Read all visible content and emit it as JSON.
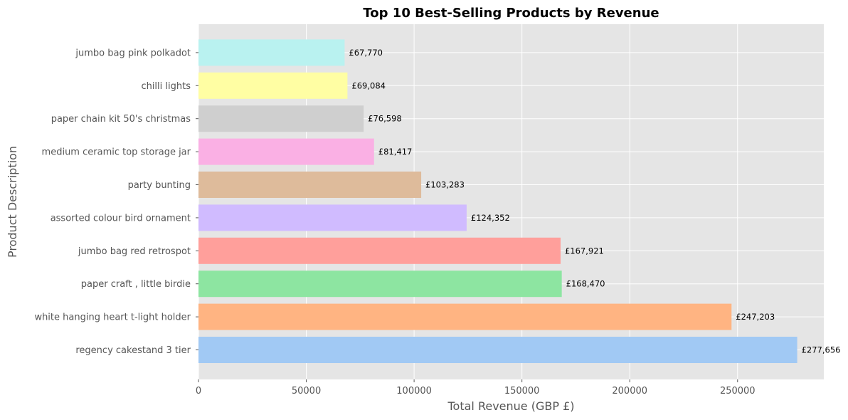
{
  "chart_data": {
    "type": "bar",
    "orientation": "horizontal",
    "title": "Top 10 Best-Selling Products by Revenue",
    "xlabel": "Total Revenue (GBP £)",
    "ylabel": "Product Description",
    "xlim": [
      0,
      290000
    ],
    "xticks": [
      0,
      50000,
      100000,
      150000,
      200000,
      250000
    ],
    "xtick_labels": [
      "0",
      "50000",
      "100000",
      "150000",
      "200000",
      "250000"
    ],
    "grid": true,
    "categories": [
      "regency cakestand 3 tier",
      "white hanging heart t-light holder",
      "paper craft , little birdie",
      "jumbo bag red retrospot",
      "assorted colour bird ornament",
      "party bunting",
      "medium ceramic top storage jar",
      "paper chain kit 50's christmas",
      "chilli lights",
      "jumbo bag pink polkadot"
    ],
    "values": [
      277656,
      247203,
      168470,
      167921,
      124352,
      103283,
      81417,
      76598,
      69084,
      67770
    ],
    "value_labels": [
      "£277,656",
      "£247,203",
      "£168,470",
      "£167,921",
      "£124,352",
      "£103,283",
      "£81,417",
      "£76,598",
      "£69,084",
      "£67,770"
    ],
    "colors": [
      "#a1c9f4",
      "#ffb482",
      "#8de5a1",
      "#ff9f9b",
      "#d0bbff",
      "#debb9b",
      "#fab0e4",
      "#cfcfcf",
      "#fffea3",
      "#b9f2f0"
    ],
    "background_color": "#e5e5e5",
    "grid_color": "#ffffff"
  }
}
